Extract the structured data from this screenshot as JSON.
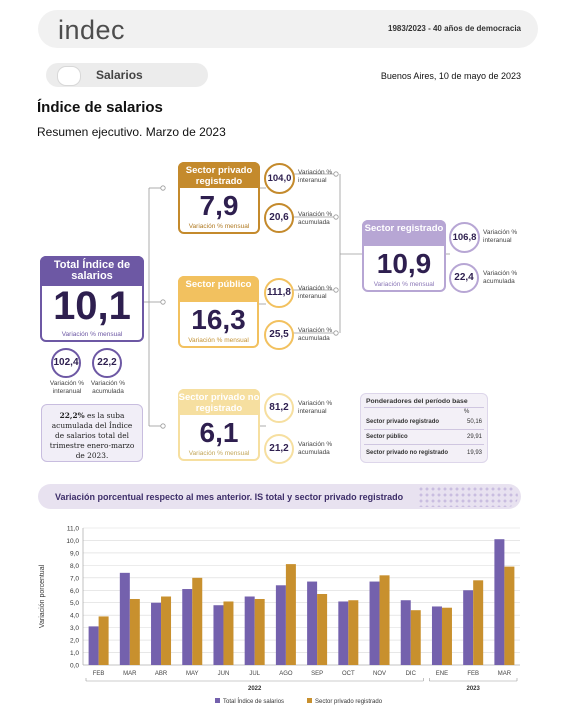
{
  "header": {
    "logo": "indec",
    "tagline": "1983/2023 - 40 años de democracia",
    "section": "Salarios",
    "date": "Buenos Aires, 10 de mayo de 2023"
  },
  "title": "Índice de salarios",
  "subtitle": "Resumen ejecutivo. Marzo de 2023",
  "total": {
    "title": "Total Índice de salarios",
    "value": "10,1",
    "caption": "Variación % mensual",
    "interanual": "102,4",
    "interanual_label": "Variación % interanual",
    "acumulada": "22,2",
    "acumulada_label": "Variación % acumulada"
  },
  "privado_registrado": {
    "title": "Sector privado registrado",
    "value": "7,9",
    "caption": "Variación % mensual",
    "interanual": "104,0",
    "interanual_label": "Variación % interanual",
    "acumulada": "20,6",
    "acumulada_label": "Variación % acumulada"
  },
  "publico": {
    "title": "Sector público",
    "value": "16,3",
    "caption": "Variación % mensual",
    "interanual": "111,8",
    "interanual_label": "Variación % interanual",
    "acumulada": "25,5",
    "acumulada_label": "Variación % acumulada"
  },
  "no_registrado": {
    "title": "Sector privado no registrado",
    "value": "6,1",
    "caption": "Variación % mensual",
    "interanual": "81,2",
    "interanual_label": "Variación % interanual",
    "acumulada": "21,2",
    "acumulada_label": "Variación % acumulada"
  },
  "registrado": {
    "title": "Sector registrado",
    "value": "10,9",
    "caption": "Variación % mensual",
    "interanual": "106,8",
    "interanual_label": "Variación % interanual",
    "acumulada": "22,4",
    "acumulada_label": "Variación % acumulada"
  },
  "note": {
    "highlight": "22,2%",
    "text": "es la suba acumulada del Índice de salarios total del trimestre enero-marzo de 2023."
  },
  "weights": {
    "title": "Ponderadores del período base",
    "unit": "%",
    "rows": [
      {
        "label": "Sector privado registrado",
        "value": "50,16"
      },
      {
        "label": "Sector público",
        "value": "29,91"
      },
      {
        "label": "Sector privado no registrado",
        "value": "19,93"
      }
    ]
  },
  "chart_title": "Variación porcentual respecto al mes anterior. IS total y sector privado registrado",
  "chart_data": {
    "type": "bar",
    "categories": [
      "FEB",
      "MAR",
      "ABR",
      "MAY",
      "JUN",
      "JUL",
      "AGO",
      "SEP",
      "OCT",
      "NOV",
      "DIC",
      "ENE",
      "FEB",
      "MAR"
    ],
    "groups": [
      {
        "label": "2022",
        "from": 0,
        "to": 10
      },
      {
        "label": "2023",
        "from": 11,
        "to": 13
      }
    ],
    "series": [
      {
        "name": "Total Índice de salarios",
        "color": "#7461ad",
        "values": [
          3.1,
          7.4,
          5.0,
          6.1,
          4.8,
          5.5,
          6.4,
          6.7,
          5.1,
          6.7,
          5.2,
          4.7,
          6.0,
          10.1
        ]
      },
      {
        "name": "Sector privado registrado",
        "color": "#c8902e",
        "values": [
          3.9,
          5.3,
          5.5,
          7.0,
          5.1,
          5.3,
          8.1,
          5.7,
          5.2,
          7.2,
          4.4,
          4.6,
          6.8,
          7.9
        ]
      }
    ],
    "ylabel": "Variación porcentual",
    "ylim": [
      0,
      11
    ],
    "yticks": [
      "0,0",
      "1,0",
      "2,0",
      "3,0",
      "4,0",
      "5,0",
      "6,0",
      "7,0",
      "8,0",
      "9,0",
      "10,0",
      "11,0"
    ],
    "grid": true,
    "legend": "bottom"
  }
}
